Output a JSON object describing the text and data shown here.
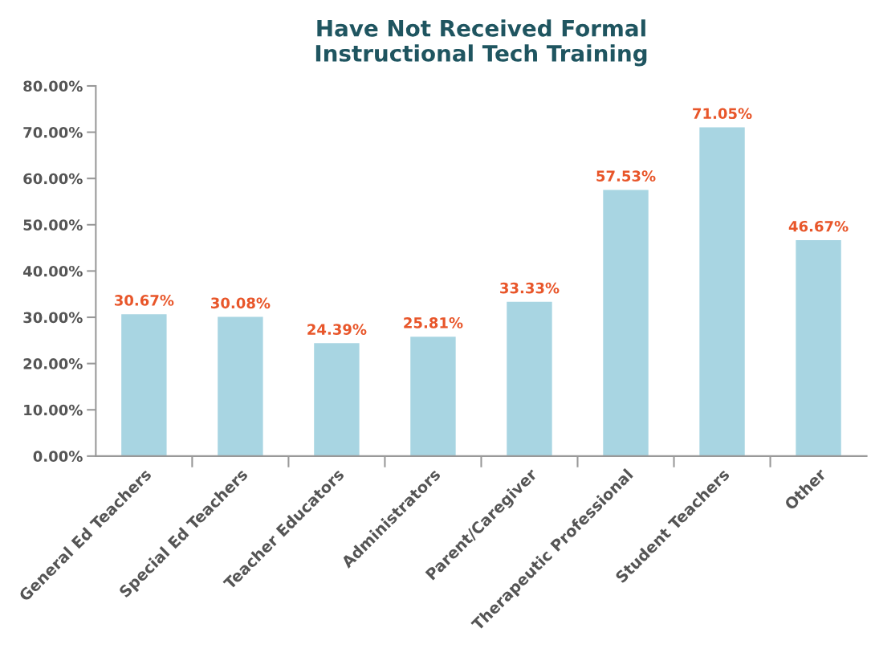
{
  "chart_data": {
    "type": "bar",
    "title": "Have Not Received Formal\nInstructional Tech Training",
    "categories": [
      "General Ed Teachers",
      "Special Ed Teachers",
      "Teacher Educators",
      "Administrators",
      "Parent/Caregiver",
      "Therapeutic Professional",
      "Student Teachers",
      "Other"
    ],
    "values": [
      30.67,
      30.08,
      24.39,
      25.81,
      33.33,
      57.53,
      71.05,
      46.67
    ],
    "value_labels": [
      "30.67%",
      "30.08%",
      "24.39%",
      "25.81%",
      "33.33%",
      "57.53%",
      "71.05%",
      "46.67%"
    ],
    "color": "#a8d5e2",
    "ylim": [
      0,
      80
    ],
    "yticks": [
      {
        "value": 0,
        "label": "0.00%"
      },
      {
        "value": 10,
        "label": "10.00%"
      },
      {
        "value": 20,
        "label": "20.00%"
      },
      {
        "value": 30,
        "label": "30.00%"
      },
      {
        "value": 40,
        "label": "40.00%"
      },
      {
        "value": 50,
        "label": "50.00%"
      },
      {
        "value": 60,
        "label": "60.00%"
      },
      {
        "value": 70,
        "label": "70.00%"
      },
      {
        "value": 80,
        "label": "80.00%"
      }
    ],
    "grid": false,
    "legend": false
  }
}
